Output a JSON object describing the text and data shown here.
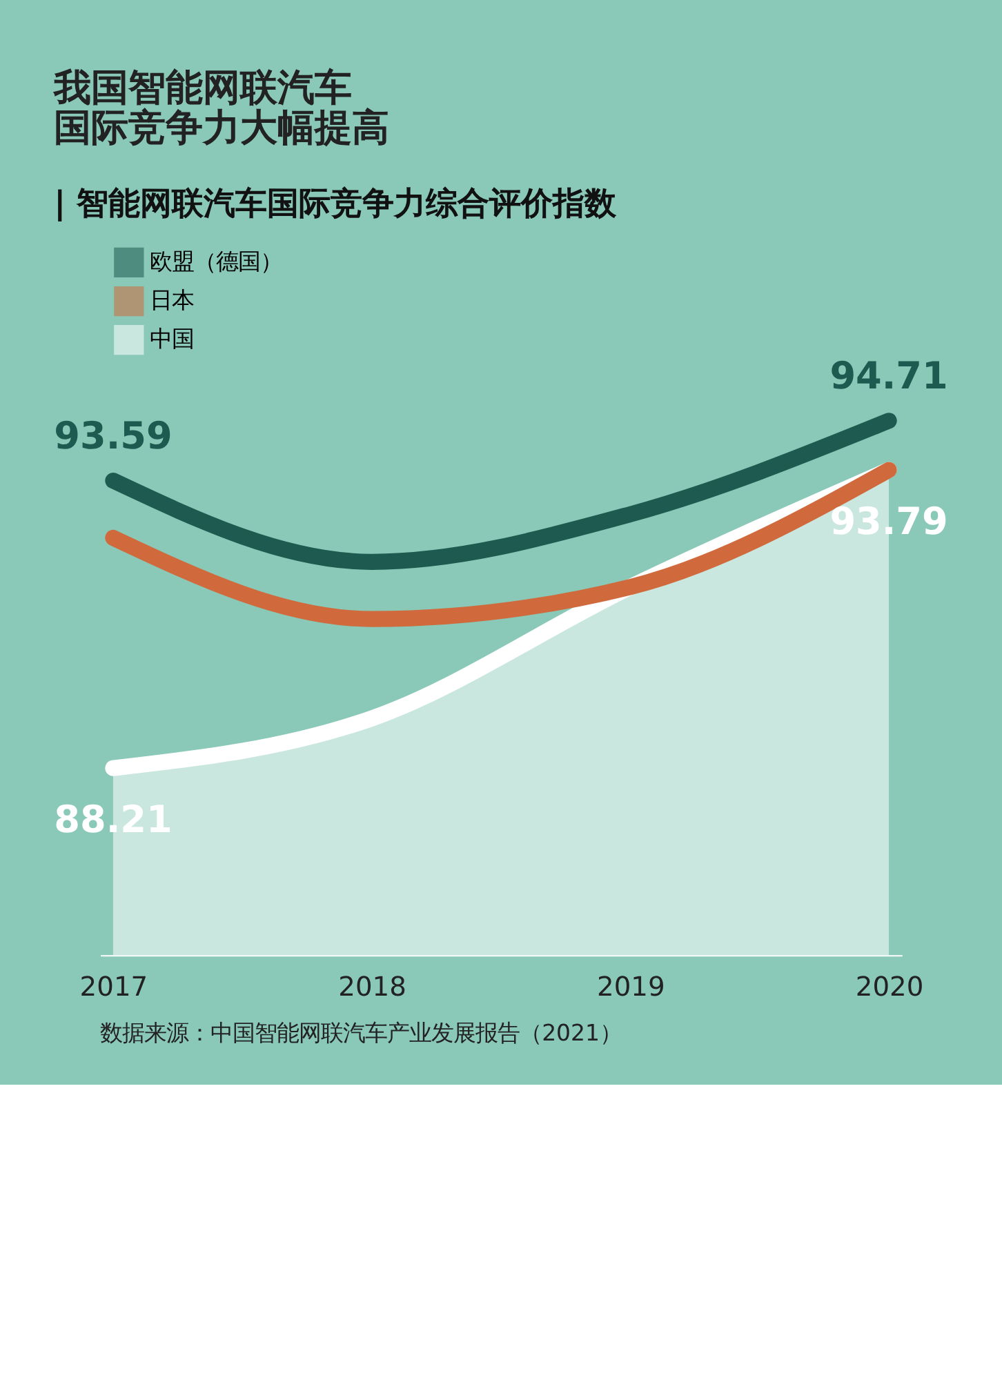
{
  "chart_data": {
    "type": "line",
    "title": [
      "我国智能网联汽车",
      "国际竞争力大幅提高"
    ],
    "subtitle": "| 智能网联汽车国际竞争力综合评价指数",
    "categories": [
      "2017",
      "2018",
      "2019",
      "2020"
    ],
    "series": [
      {
        "name": "欧盟（德国）",
        "color": "#1e5a50",
        "values": [
          93.59,
          92.07,
          92.96,
          94.71
        ],
        "value_labels": [
          "93.59",
          null,
          null,
          "94.71"
        ]
      },
      {
        "name": "日本",
        "color": "#d06a3c",
        "values": [
          92.52,
          91.0,
          91.6,
          93.79
        ]
      },
      {
        "name": "中国",
        "color": "#ffffff",
        "type": "area",
        "values": [
          88.21,
          89.14,
          91.6,
          93.79
        ],
        "value_labels": [
          "88.21",
          null,
          null,
          "93.79"
        ]
      }
    ],
    "tick_labels": "x",
    "legend": "top left",
    "grid": false,
    "annotations": [
      "数据来源：中国智能网联汽车产业发展报告（2021）"
    ]
  }
}
